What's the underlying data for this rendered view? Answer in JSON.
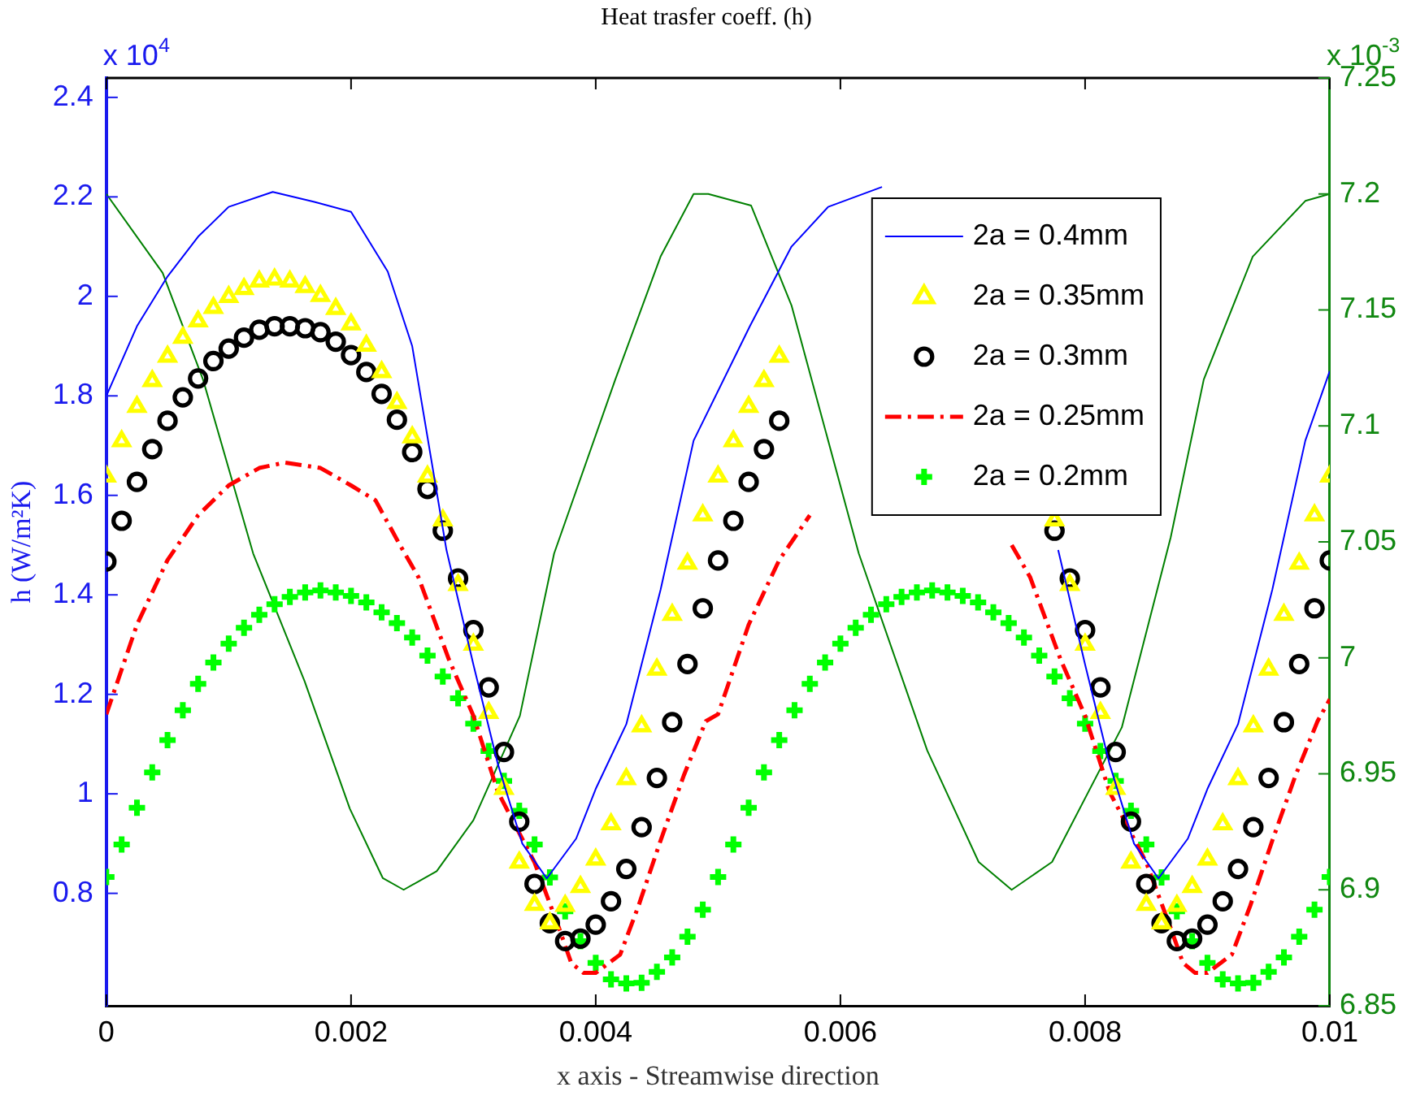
{
  "chart_data": {
    "type": "line",
    "title": "Heat trasfer coeff. (h)",
    "xlabel": "x axis - Streamwise direction",
    "ylabel": "h (W/m²K)",
    "annotations": [
      "x 10$^{4}$",
      "x 10$^{-3}$"
    ],
    "xlim": [
      0,
      0.01
    ],
    "xticks": [
      0,
      0.002,
      0.004,
      0.006,
      0.008,
      0.01
    ],
    "ylim": [
      0.574,
      2.439
    ],
    "yticks": [
      0.8,
      1,
      1.2,
      1.4,
      1.6,
      1.8,
      2,
      2.2,
      2.4
    ],
    "y2lim": [
      6.85,
      7.25
    ],
    "y2ticks": [
      6.85,
      6.9,
      6.95,
      7,
      7.05,
      7.1,
      7.15,
      7.2,
      7.25
    ],
    "grid": false,
    "legend": "top right",
    "x": [
      0,
      0.000125,
      0.00025,
      0.000375,
      0.0005,
      0.000625,
      0.00075,
      0.000875,
      0.001,
      0.001125,
      0.00125,
      0.001375,
      0.0015,
      0.001625,
      0.00175,
      0.001875,
      0.002,
      0.002125,
      0.00225,
      0.002375,
      0.0025,
      0.002625,
      0.00275,
      0.002875,
      0.003,
      0.003125,
      0.00325,
      0.003375,
      0.0035,
      0.003625,
      0.00375,
      0.003875,
      0.004,
      0.004125,
      0.00425,
      0.004375,
      0.0045,
      0.004625,
      0.00475,
      0.004875,
      0.005,
      0.005125,
      0.00525,
      0.005375,
      0.0055,
      0.005625,
      0.00575,
      0.005875,
      0.006,
      0.006125,
      0.00625,
      0.006375,
      0.0065,
      0.006625,
      0.00675,
      0.006875,
      0.007,
      0.007125,
      0.00725,
      0.007375,
      0.0075,
      0.007625,
      0.00775,
      0.007875,
      0.008,
      0.008125,
      0.00825,
      0.008375,
      0.0085,
      0.008625,
      0.00875,
      0.008875,
      0.009,
      0.009125,
      0.00925,
      0.009375,
      0.0095,
      0.009625,
      0.00975,
      0.009875,
      0.01
    ],
    "series": [
      {
        "name": "2a = 0.4mm",
        "color": "#0000ff",
        "marker": "none",
        "line_style": "solid",
        "x": [
          0,
          0.00025,
          0.0005,
          0.00075,
          0.001,
          0.00136,
          0.0017,
          0.002,
          0.0023,
          0.0025,
          0.00278,
          0.003,
          0.0032,
          0.0034,
          0.0036,
          0.00384,
          0.004,
          0.00425,
          0.00453,
          0.0048,
          0.00526,
          0.0056,
          0.0059,
          0.00634,
          0.0067,
          0.007,
          0.0073,
          0.0075,
          0.00778,
          0.008,
          0.0082,
          0.0084,
          0.0086,
          0.00884,
          0.009,
          0.00925,
          0.00953,
          0.0098,
          0.01
        ],
        "values": [
          1.8,
          1.94,
          2.04,
          2.12,
          2.18,
          2.21,
          2.19,
          2.17,
          2.05,
          1.9,
          1.49,
          1.26,
          1.06,
          0.9,
          0.83,
          0.91,
          1.01,
          1.14,
          1.41,
          1.71,
          1.94,
          2.1,
          2.18,
          2.22,
          null,
          null,
          null,
          null,
          1.49,
          1.26,
          1.06,
          0.9,
          0.83,
          0.91,
          1.01,
          1.14,
          1.41,
          1.71,
          1.85
        ]
      },
      {
        "name": "2a = 0.35mm",
        "type": "scatter",
        "color": "#ffff00",
        "marker": "triangle",
        "values": [
          1.638,
          1.709,
          1.778,
          1.83,
          1.879,
          1.917,
          1.95,
          1.977,
          1.999,
          2.015,
          2.03,
          2.034,
          2.03,
          2.019,
          2.001,
          1.975,
          1.944,
          1.901,
          1.848,
          1.786,
          1.717,
          1.638,
          1.55,
          1.42,
          1.3,
          1.163,
          1.01,
          0.862,
          0.777,
          0.74,
          0.775,
          0.813,
          0.868,
          0.939,
          1.03,
          1.136,
          1.25,
          1.36,
          1.463,
          1.56,
          1.638,
          1.709,
          1.778,
          1.83,
          1.879,
          null,
          null,
          null,
          null,
          null,
          null,
          null,
          null,
          null,
          null,
          null,
          null,
          null,
          null,
          null,
          null,
          null,
          1.55,
          1.42,
          1.3,
          1.163,
          1.01,
          0.862,
          0.777,
          0.74,
          0.775,
          0.813,
          0.868,
          0.939,
          1.03,
          1.136,
          1.25,
          1.36,
          1.463,
          1.56,
          1.638
        ]
      },
      {
        "name": "2a = 0.3mm",
        "type": "scatter",
        "color": "#000000",
        "marker": "circle",
        "values": [
          1.467,
          1.549,
          1.627,
          1.693,
          1.75,
          1.797,
          1.835,
          1.87,
          1.895,
          1.917,
          1.933,
          1.94,
          1.94,
          1.936,
          1.928,
          1.909,
          1.882,
          1.848,
          1.804,
          1.752,
          1.687,
          1.613,
          1.529,
          1.433,
          1.329,
          1.214,
          1.084,
          0.944,
          0.819,
          0.74,
          0.704,
          0.709,
          0.737,
          0.784,
          0.849,
          0.933,
          1.032,
          1.144,
          1.261,
          1.373,
          1.469,
          1.549,
          1.627,
          1.693,
          1.75,
          null,
          null,
          null,
          null,
          null,
          null,
          null,
          null,
          null,
          null,
          null,
          null,
          null,
          null,
          null,
          null,
          null,
          1.529,
          1.433,
          1.329,
          1.214,
          1.084,
          0.944,
          0.819,
          0.74,
          0.704,
          0.709,
          0.737,
          0.784,
          0.849,
          0.933,
          1.032,
          1.144,
          1.261,
          1.373,
          1.469
        ]
      },
      {
        "name": "2a = 0.25mm",
        "color": "#ff0000",
        "marker": "none",
        "line_style": "dashed",
        "x": [
          0,
          0.00025,
          0.0005,
          0.00075,
          0.001,
          0.00125,
          0.00146,
          0.00175,
          0.002,
          0.0022,
          0.0024,
          0.00255,
          0.0028,
          0.003,
          0.0032,
          0.0035,
          0.0037,
          0.0038,
          0.0039,
          0.004,
          0.0042,
          0.00435,
          0.00453,
          0.00472,
          0.0049,
          0.005,
          0.00525,
          0.0055,
          0.00575,
          0.006,
          0.00625,
          0.00646,
          0.00675,
          0.007,
          0.0072,
          0.0074,
          0.00755,
          0.0078,
          0.008,
          0.0082,
          0.0085,
          0.0087,
          0.0088,
          0.0089,
          0.009,
          0.0092,
          0.00935,
          0.00953,
          0.00972,
          0.0099,
          0.01
        ],
        "values": [
          1.16,
          1.34,
          1.47,
          1.56,
          1.62,
          1.655,
          1.666,
          1.655,
          1.62,
          1.59,
          1.5,
          1.436,
          1.27,
          1.157,
          1.004,
          0.862,
          0.73,
          0.66,
          0.64,
          0.64,
          0.677,
          0.775,
          0.906,
          1.037,
          1.146,
          1.16,
          1.34,
          1.47,
          1.56,
          null,
          null,
          null,
          null,
          null,
          null,
          1.5,
          1.436,
          1.27,
          1.157,
          1.004,
          0.862,
          0.73,
          0.66,
          0.64,
          0.64,
          0.677,
          0.775,
          0.906,
          1.037,
          1.146,
          1.19
        ]
      },
      {
        "name": "2a = 0.2mm",
        "type": "scatter",
        "color": "#00ff00",
        "marker": "cross",
        "values": [
          0.833,
          0.898,
          0.972,
          1.043,
          1.108,
          1.168,
          1.221,
          1.264,
          1.302,
          1.334,
          1.36,
          1.381,
          1.396,
          1.405,
          1.409,
          1.405,
          1.398,
          1.385,
          1.365,
          1.343,
          1.314,
          1.278,
          1.236,
          1.192,
          1.141,
          1.086,
          1.026,
          0.966,
          0.898,
          0.832,
          0.764,
          0.704,
          0.66,
          0.627,
          0.619,
          0.62,
          0.642,
          0.671,
          0.713,
          0.767,
          0.833,
          0.898,
          0.972,
          1.043,
          1.108,
          1.168,
          1.221,
          1.264,
          1.302,
          1.334,
          1.36,
          1.381,
          1.396,
          1.405,
          1.409,
          1.405,
          1.398,
          1.385,
          1.365,
          1.343,
          1.314,
          1.278,
          1.236,
          1.192,
          1.141,
          1.086,
          1.026,
          0.966,
          0.898,
          0.832,
          0.764,
          0.704,
          0.66,
          0.627,
          0.619,
          0.62,
          0.642,
          0.671,
          0.713,
          0.767,
          0.833
        ]
      },
      {
        "axis": "y2",
        "color": "#008000",
        "marker": "none",
        "line_style": "solid",
        "x": [
          0,
          0.00046,
          0.00079,
          0.0012,
          0.00162,
          0.00199,
          0.00226,
          0.00243,
          0.0027,
          0.003,
          0.00338,
          0.00366,
          0.00416,
          0.00453,
          0.0048,
          0.00492,
          0.00527,
          0.0056,
          0.00615,
          0.00671,
          0.00713,
          0.0074,
          0.00773,
          0.0083,
          0.0087,
          0.00897,
          0.00937,
          0.0098,
          0.01
        ],
        "values": [
          7.2,
          7.166,
          7.12,
          7.045,
          6.99,
          6.935,
          6.905,
          6.9,
          6.908,
          6.93,
          6.975,
          7.045,
          7.12,
          7.173,
          7.2,
          7.2,
          7.195,
          7.152,
          7.045,
          6.96,
          6.912,
          6.9,
          6.912,
          6.97,
          7.052,
          7.12,
          7.173,
          7.197,
          7.2
        ]
      }
    ]
  }
}
